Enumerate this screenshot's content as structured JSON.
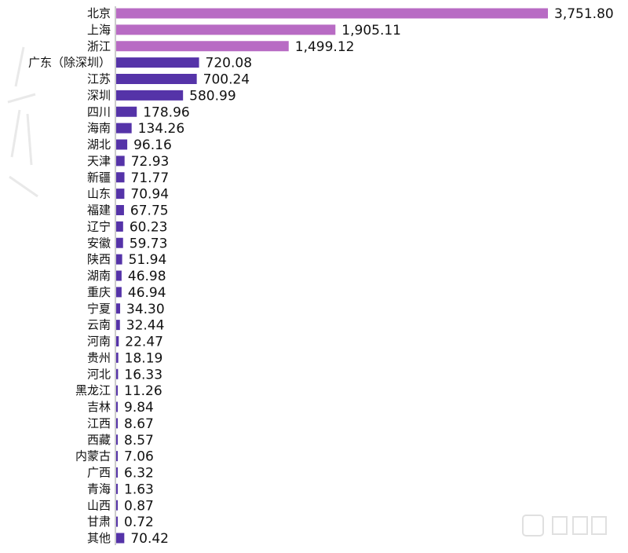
{
  "chart_data": {
    "type": "bar",
    "orientation": "horizontal",
    "categories": [
      "北京",
      "上海",
      "浙江",
      "广东（除深圳）",
      "江苏",
      "深圳",
      "四川",
      "海南",
      "湖北",
      "天津",
      "新疆",
      "山东",
      "福建",
      "辽宁",
      "安徽",
      "陕西",
      "湖南",
      "重庆",
      "宁夏",
      "云南",
      "河南",
      "贵州",
      "河北",
      "黑龙江",
      "吉林",
      "江西",
      "西藏",
      "内蒙古",
      "广西",
      "青海",
      "山西",
      "甘肃",
      "其他"
    ],
    "values": [
      3751.8,
      1905.11,
      1499.12,
      720.08,
      700.24,
      580.99,
      178.96,
      134.26,
      96.16,
      72.93,
      71.77,
      70.94,
      67.75,
      60.23,
      59.73,
      51.94,
      46.98,
      46.94,
      34.3,
      32.44,
      22.47,
      18.19,
      16.33,
      11.26,
      9.84,
      8.67,
      8.57,
      7.06,
      6.32,
      1.63,
      0.87,
      0.72,
      70.42
    ],
    "value_labels": [
      "3,751.80",
      "1,905.11",
      "1,499.12",
      "720.08",
      "700.24",
      "580.99",
      "178.96",
      "134.26",
      "96.16",
      "72.93",
      "71.77",
      "70.94",
      "67.75",
      "60.23",
      "59.73",
      "51.94",
      "46.98",
      "46.94",
      "34.30",
      "32.44",
      "22.47",
      "18.19",
      "16.33",
      "11.26",
      "9.84",
      "8.67",
      "8.57",
      "7.06",
      "6.32",
      "1.63",
      "0.87",
      "0.72",
      "70.42"
    ],
    "title": "",
    "xlabel": "",
    "ylabel": "",
    "xlim": [
      0,
      3751.8
    ],
    "grid": false,
    "colors": {
      "top3": "#b86bc4",
      "others": "#5533a8"
    },
    "highlight_count": 3
  },
  "watermarks": [
    "智东西"
  ]
}
